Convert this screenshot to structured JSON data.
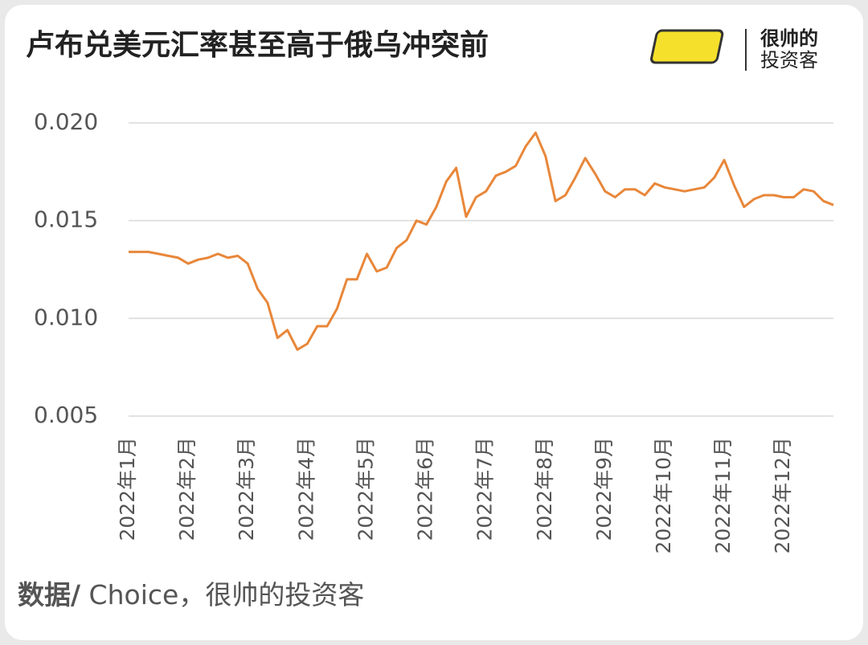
{
  "chart_data": {
    "type": "line",
    "title": "卢布兑美元汇率甚至高于俄乌冲突前",
    "source_label": "数据/",
    "source": " Choice，很帅的投资客",
    "brand": [
      "很帅的",
      "投资客"
    ],
    "categories": [
      "2022年1月",
      null,
      null,
      null,
      null,
      null,
      "2022年2月",
      null,
      null,
      null,
      null,
      null,
      "2022年3月",
      null,
      null,
      null,
      null,
      null,
      "2022年4月",
      null,
      null,
      null,
      null,
      null,
      "2022年5月",
      null,
      null,
      null,
      null,
      null,
      "2022年6月",
      null,
      null,
      null,
      null,
      null,
      "2022年7月",
      null,
      null,
      null,
      null,
      null,
      "2022年8月",
      null,
      null,
      null,
      null,
      null,
      "2022年9月",
      null,
      null,
      null,
      null,
      null,
      "2022年10月",
      null,
      null,
      null,
      null,
      null,
      "2022年11月",
      null,
      null,
      null,
      null,
      null,
      "2022年12月",
      null,
      null,
      null,
      null,
      null
    ],
    "series": [
      {
        "color": "#e8873a",
        "values": [
          0.0134,
          0.0134,
          0.0134,
          0.0133,
          0.0132,
          0.0131,
          0.0128,
          0.013,
          0.0131,
          0.0133,
          0.0131,
          0.0132,
          0.0128,
          0.0115,
          0.0108,
          0.009,
          0.0094,
          0.0084,
          0.0087,
          0.0096,
          0.0096,
          0.0105,
          0.012,
          0.012,
          0.0133,
          0.0124,
          0.0126,
          0.0136,
          0.014,
          0.015,
          0.0148,
          0.0157,
          0.017,
          0.0177,
          0.0152,
          0.0162,
          0.0165,
          0.0173,
          0.0175,
          0.0178,
          0.0188,
          0.0195,
          0.0183,
          0.016,
          0.0163,
          0.0172,
          0.0182,
          0.0174,
          0.0165,
          0.0162,
          0.0166,
          0.0166,
          0.0163,
          0.0169,
          0.0167,
          0.0166,
          0.0165,
          0.0166,
          0.0167,
          0.0172,
          0.0181,
          0.0168,
          0.0157,
          0.0161,
          0.0163,
          0.0163,
          0.0162,
          0.0162,
          0.0166,
          0.0165,
          0.016,
          0.0158
        ]
      }
    ],
    "ylim": [
      0.005,
      0.02
    ],
    "yticks": [
      {
        "value": 0.005,
        "label": "0.005"
      },
      {
        "value": 0.01,
        "label": "0.010"
      },
      {
        "value": 0.015,
        "label": "0.015"
      },
      {
        "value": 0.02,
        "label": "0.020"
      }
    ],
    "grid": true
  }
}
